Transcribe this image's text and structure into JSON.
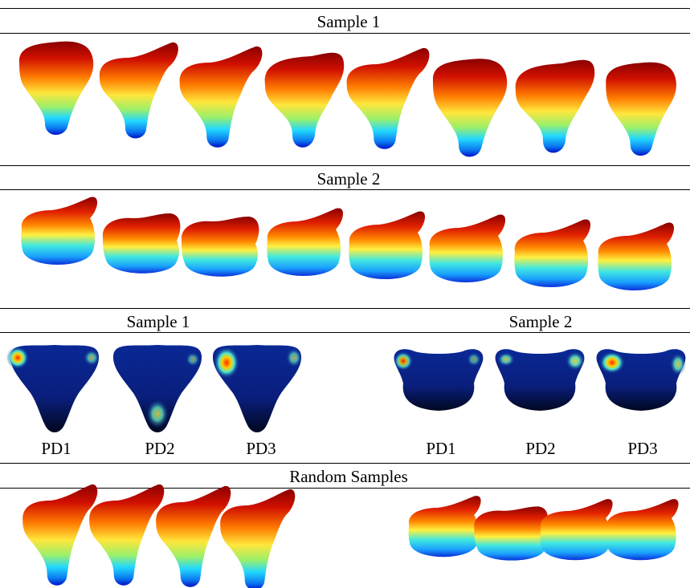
{
  "sections": {
    "top_sample1": "Sample 1",
    "top_sample2": "Sample 2",
    "pd_sample1": "Sample 1",
    "pd_sample2": "Sample 2",
    "random": "Random Samples"
  },
  "pd_labels": {
    "left": [
      "PD1",
      "PD2",
      "PD3"
    ],
    "right": [
      "PD1",
      "PD2",
      "PD3"
    ]
  },
  "colors": {
    "jet_red": "#b40000",
    "jet_orange": "#ff7a00",
    "jet_yellow": "#ffe63c",
    "jet_cyan": "#22d8ff",
    "jet_blue": "#0010c8",
    "pd_base": "#0a1f80",
    "pd_hot": "#ff2a00"
  }
}
